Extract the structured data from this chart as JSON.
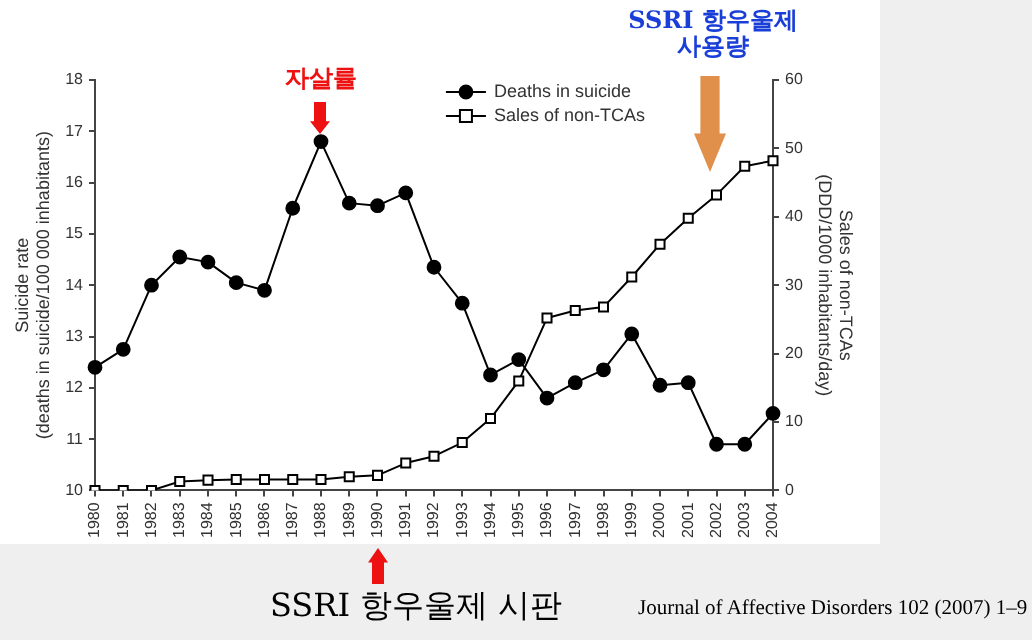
{
  "chart_data": {
    "type": "line",
    "ylabel": "Suicide rate\n(deaths in suicide/100 000 inhabitants)",
    "y2label": "Sales of non-TCAs\n(DDD/1000 inhabitants/day)",
    "categories": [
      "1980",
      "1981",
      "1982",
      "1983",
      "1984",
      "1985",
      "1986",
      "1987",
      "1988",
      "1989",
      "1990",
      "1991",
      "1992",
      "1993",
      "1994",
      "1995",
      "1996",
      "1997",
      "1998",
      "1999",
      "2000",
      "2001",
      "2002",
      "2003",
      "2004"
    ],
    "series": [
      {
        "name": "Deaths in suicide",
        "color": "#000000",
        "marker": "circle",
        "values": [
          12.4,
          12.75,
          14.0,
          14.55,
          14.45,
          14.05,
          13.9,
          15.5,
          16.8,
          15.6,
          15.55,
          15.8,
          14.35,
          13.65,
          12.25,
          12.55,
          11.8,
          12.1,
          12.35,
          13.05,
          12.05,
          12.1,
          10.9,
          10.9,
          11.5
        ]
      },
      {
        "name": "Sales of non-TCAs",
        "color": "#000000",
        "marker": "square",
        "axis": "y2",
        "values": [
          0,
          0,
          0,
          1.3,
          1.5,
          1.6,
          1.6,
          1.6,
          1.6,
          2,
          2.2,
          4,
          5,
          7,
          10.5,
          16,
          25.2,
          26.3,
          26.8,
          31.2,
          36,
          39.8,
          43.2,
          47.4,
          48.2
        ]
      }
    ],
    "ylim": [
      10,
      18
    ],
    "yticks": [
      10,
      11,
      12,
      13,
      14,
      15,
      16,
      17,
      18
    ],
    "y2lim": [
      0,
      60
    ],
    "y2ticks": [
      0,
      10,
      20,
      30,
      40,
      50,
      60
    ],
    "legend": "top right",
    "line_style": "solid",
    "annotations": [
      {
        "text": "자살률",
        "x": "1988",
        "y": 16.8
      },
      "SSRI 항우울제\n사용량",
      "SSRI 항우울제 시판",
      "Journal of Affective Disorders 102 (2007) 1–9"
    ]
  }
}
